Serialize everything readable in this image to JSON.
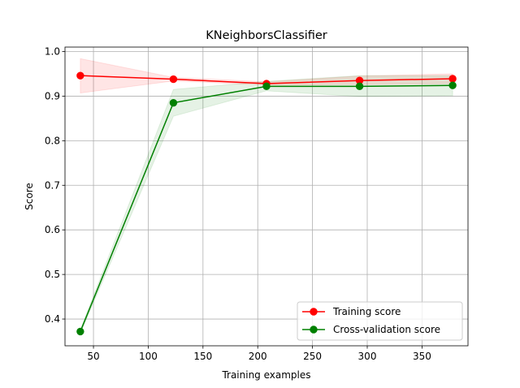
{
  "chart_data": {
    "type": "line",
    "title": "KNeighborsClassifier",
    "xlabel": "Training examples",
    "ylabel": "Score",
    "xlim": [
      24,
      392
    ],
    "ylim": [
      0.34,
      1.01
    ],
    "xticks": [
      50,
      100,
      150,
      200,
      250,
      300,
      350
    ],
    "yticks": [
      0.4,
      0.5,
      0.6,
      0.7,
      0.8,
      0.9,
      1.0
    ],
    "xtick_labels": [
      "50",
      "100",
      "150",
      "200",
      "250",
      "300",
      "350"
    ],
    "ytick_labels": [
      "0.4",
      "0.5",
      "0.6",
      "0.7",
      "0.8",
      "0.9",
      "1.0"
    ],
    "grid": true,
    "legend_position": "lower-right",
    "x": [
      38,
      123,
      208,
      293,
      378
    ],
    "series": [
      {
        "name": "Training score",
        "color": "#ff0000",
        "values": [
          0.946,
          0.938,
          0.928,
          0.935,
          0.939
        ],
        "band_upper": [
          0.984,
          0.942,
          0.932,
          0.945,
          0.95
        ],
        "band_lower": [
          0.907,
          0.934,
          0.925,
          0.926,
          0.928
        ]
      },
      {
        "name": "Cross-validation score",
        "color": "#008000",
        "values": [
          0.372,
          0.885,
          0.922,
          0.922,
          0.924
        ],
        "band_upper": [
          0.376,
          0.915,
          0.933,
          0.946,
          0.946
        ],
        "band_lower": [
          0.368,
          0.855,
          0.912,
          0.899,
          0.901
        ]
      }
    ]
  }
}
